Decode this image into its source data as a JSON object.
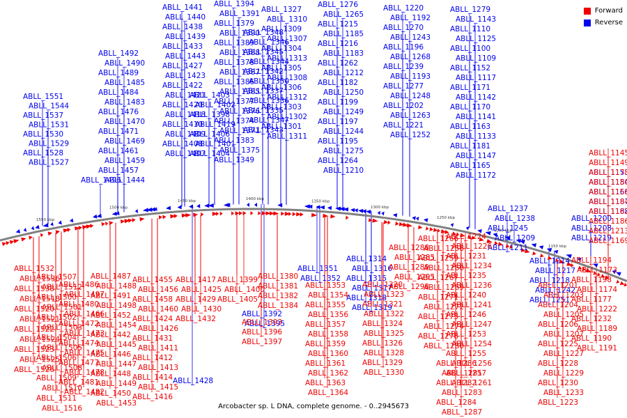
{
  "legend": {
    "forward_label": "Forward",
    "reverse_label": "Reverse",
    "forward_color": "#ee0000",
    "reverse_color": "#0000ee"
  },
  "caption": "Arcobacter sp. L DNA, complete genome. - 0..2945673",
  "backbone_color": "#808080",
  "position_labels": [
    "1550 kbp",
    "1500 kbp",
    "1450 kbp",
    "1400 kbp",
    "1350 kbp",
    "1300 kbp",
    "1250 kbp",
    "1200 kbp",
    "1150 kbp"
  ],
  "reverse_genes": {
    "top_left": [
      "ABLL_1551",
      "ABLL_1544",
      "ABLL_1537",
      "ABLL_1531",
      "ABLL_1530",
      "ABLL_1529",
      "ABLL_1528",
      "ABLL_1527",
      "ABLL_1496",
      "ABLL_1492",
      "ABLL_1490",
      "ABLL_1489",
      "ABLL_1485",
      "ABLL_1484",
      "ABLL_1483",
      "ABLL_1476",
      "ABLL_1470",
      "ABLL_1471",
      "ABLL_1469",
      "ABLL_1461",
      "ABLL_1459",
      "ABLL_1457",
      "ABLL_1444",
      "ABLL_1441",
      "ABLL_1440",
      "ABLL_1438",
      "ABLL_1439",
      "ABLL_1433",
      "ABLL_1443",
      "ABLL_1427",
      "ABLL_1423",
      "ABLL_1422",
      "ABLL_1421",
      "ABLL_1420",
      "ABLL_1418",
      "ABLL_1410",
      "ABLL_1409",
      "ABLL_1408",
      "ABLL_1407",
      "ABLL_1403",
      "ABLL_1402",
      "ABLL_1398",
      "ABLL_1419",
      "ABLL_1406",
      "ABLL_1401",
      "ABLL_1404"
    ],
    "top_middle": [
      "ABLL_1394",
      "ABLL_1391",
      "ABLL_1379",
      "ABLL_1390",
      "ABLL_1389",
      "ABLL_1388",
      "ABLL_1378",
      "ABLL_1387",
      "ABLL_1386",
      "ABLL_1385",
      "ABLL_1377",
      "ABLL_1376",
      "ABLL_1374",
      "ABLL_1371",
      "ABLL_1383",
      "ABLL_1375",
      "ABLL_1349",
      "ABLL_1348",
      "ABLL_1346",
      "ABLL_1345",
      "ABLL_1344",
      "ABLL_1342",
      "ABLL_1350",
      "ABLL_1337",
      "ABLL_1336",
      "ABLL_1335",
      "ABLL_1347",
      "ABLL_1343",
      "ABLL_1327",
      "ABLL_1310",
      "ABLL_1309",
      "ABLL_1307",
      "ABLL_1304",
      "ABLL_1313",
      "ABLL_1305",
      "ABLL_1308",
      "ABLL_1306",
      "ABLL_1312",
      "ABLL_1303",
      "ABLL_1302",
      "ABLL_1301",
      "ABLL_1311"
    ],
    "top_right": [
      "ABLL_1276",
      "ABLL_1265",
      "ABLL_1215",
      "ABLL_1185",
      "ABLL_1216",
      "ABLL_1183",
      "ABLL_1262",
      "ABLL_1212",
      "ABLL_1182",
      "ABLL_1250",
      "ABLL_1199",
      "ABLL_1249",
      "ABLL_1197",
      "ABLL_1244",
      "ABLL_1195",
      "ABLL_1275",
      "ABLL_1264",
      "ABLL_1210",
      "ABLL_1220",
      "ABLL_1192",
      "ABLL_1270",
      "ABLL_1243",
      "ABLL_1196",
      "ABLL_1268",
      "ABLL_1239",
      "ABLL_1193",
      "ABLL_1277",
      "ABLL_1248",
      "ABLL_1202",
      "ABLL_1263",
      "ABLL_1221",
      "ABLL_1252",
      "ABLL_1279",
      "ABLL_1143",
      "ABLL_1110",
      "ABLL_1125",
      "ABLL_1100",
      "ABLL_1109",
      "ABLL_1152",
      "ABLL_1117",
      "ABLL_1171",
      "ABLL_1142",
      "ABLL_1170",
      "ABLL_1141",
      "ABLL_1163",
      "ABLL_1133",
      "ABLL_1181",
      "ABLL_1147",
      "ABLL_1165",
      "ABLL_1172"
    ],
    "right_side": [
      "ABLL_1153",
      "ABLL_1154",
      "ABLL_1166",
      "ABLL_1187",
      "ABLL_1188",
      "ABLL_1200",
      "ABLL_1208",
      "ABLL_1219",
      "ABLL_1237",
      "ABLL_1238",
      "ABLL_1245",
      "ABLL_1209",
      "ABLL_1211",
      "ABLL_1214",
      "ABLL_1217",
      "ABLL_1218",
      "ABLL_1242",
      "ABLL_1251"
    ],
    "bottom": [
      "ABLL_1351",
      "ABLL_1352",
      "ABLL_1314",
      "ABLL_1316",
      "ABLL_1315",
      "ABLL_1317",
      "ABLL_1318",
      "ABLL_1319",
      "ABLL_1392",
      "ABLL_1395",
      "ABLL_1428"
    ]
  },
  "forward_genes": {
    "right_side": [
      "ABLL_1145",
      "ABLL_1149",
      "ABLL_1178",
      "ABLL_1180",
      "ABLL_1158",
      "ABLL_1184",
      "ABLL_1162",
      "ABLL_1186",
      "ABLL_1213",
      "ABLL_1169",
      "ABLL_1194",
      "ABLL_1173",
      "ABLL_1198",
      "ABLL_1174",
      "ABLL_1177",
      "ABLL_1222",
      "ABLL_1232",
      "ABLL_1189",
      "ABLL_1190",
      "ABLL_1191",
      "ABLL_1201",
      "ABLL_1203",
      "ABLL_1204",
      "ABLL_1205",
      "ABLL_1206",
      "ABLL_1207",
      "ABLL_1225",
      "ABLL_1227",
      "ABLL_1228",
      "ABLL_1229",
      "ABLL_1230",
      "ABLL_1233",
      "ABLL_1223",
      "ABLL_1224",
      "ABLL_1226",
      "ABLL_1231",
      "ABLL_1234",
      "ABLL_1235",
      "ABLL_1236",
      "ABLL_1240",
      "ABLL_1241",
      "ABLL_1246",
      "ABLL_1247",
      "ABLL_1253",
      "ABLL_1254",
      "ABLL_1255",
      "ABLL_1256",
      "ABLL_1257",
      "ABLL_1261"
    ],
    "middle_right": [
      "ABLL_1266",
      "ABLL_1258",
      "ABLL_1259",
      "ABLL_1260",
      "ABLL_1267",
      "ABLL_1269",
      "ABLL_1271",
      "ABLL_1272",
      "ABLL_1273",
      "ABLL_1274",
      "ABLL_1278",
      "ABLL_1280",
      "ABLL_1286",
      "ABLL_1281",
      "ABLL_1282",
      "ABLL_1283",
      "ABLL_1284",
      "ABLL_1287",
      "ABLL_1288",
      "ABLL_1285",
      "ABLL_1289",
      "ABLL_1295",
      "ABLL_1298",
      "ABLL_1300"
    ],
    "middle": [
      "ABLL_1320",
      "ABLL_1323",
      "ABLL_1321",
      "ABLL_1322",
      "ABLL_1324",
      "ABLL_1325",
      "ABLL_1326",
      "ABLL_1328",
      "ABLL_1329",
      "ABLL_1330",
      "ABLL_1353",
      "ABLL_1354",
      "ABLL_1355",
      "ABLL_1356",
      "ABLL_1357",
      "ABLL_1358",
      "ABLL_1359",
      "ABLL_1360",
      "ABLL_1361",
      "ABLL_1362",
      "ABLL_1363",
      "ABLL_1364",
      "ABLL_1380",
      "ABLL_1381",
      "ABLL_1382",
      "ABLL_1384",
      "ABLL_1399",
      "ABLL_1400",
      "ABLL_1405",
      "ABLL_1393",
      "ABLL_1396",
      "ABLL_1397"
    ],
    "left_side": [
      "ABLL_1532",
      "ABLL_1536",
      "ABLL_1538",
      "ABLL_1518",
      "ABLL_1520",
      "ABLL_1521",
      "ABLL_1522",
      "ABLL_1524",
      "ABLL_1523",
      "ABLL_1525",
      "ABLL_1526",
      "ABLL_1507",
      "ABLL_1512",
      "ABLL_1500",
      "ABLL_1501",
      "ABLL_1502",
      "ABLL_1503",
      "ABLL_1504",
      "ABLL_1505",
      "ABLL_1506",
      "ABLL_1508",
      "ABLL_1509",
      "ABLL_1510",
      "ABLL_1511",
      "ABLL_1516",
      "ABLL_1486",
      "ABLL_1497",
      "ABLL_1480",
      "ABLL_1466",
      "ABLL_1472",
      "ABLL_1473",
      "ABLL_1474",
      "ABLL_1475",
      "ABLL_1477",
      "ABLL_1478",
      "ABLL_1481",
      "ABLL_1482",
      "ABLL_1487",
      "ABLL_1488",
      "ABLL_1491",
      "ABLL_1498",
      "ABLL_1452",
      "ABLL_1454",
      "ABLL_1442",
      "ABLL_1445",
      "ABLL_1446",
      "ABLL_1447",
      "ABLL_1448",
      "ABLL_1449",
      "ABLL_1450",
      "ABLL_1453",
      "ABLL_1455",
      "ABLL_1456",
      "ABLL_1458",
      "ABLL_1460",
      "ABLL_1424",
      "ABLL_1426",
      "ABLL_1431",
      "ABLL_1411",
      "ABLL_1412",
      "ABLL_1413",
      "ABLL_1414",
      "ABLL_1415",
      "ABLL_1416",
      "ABLL_1417",
      "ABLL_1425",
      "ABLL_1429",
      "ABLL_1430",
      "ABLL_1432"
    ]
  }
}
